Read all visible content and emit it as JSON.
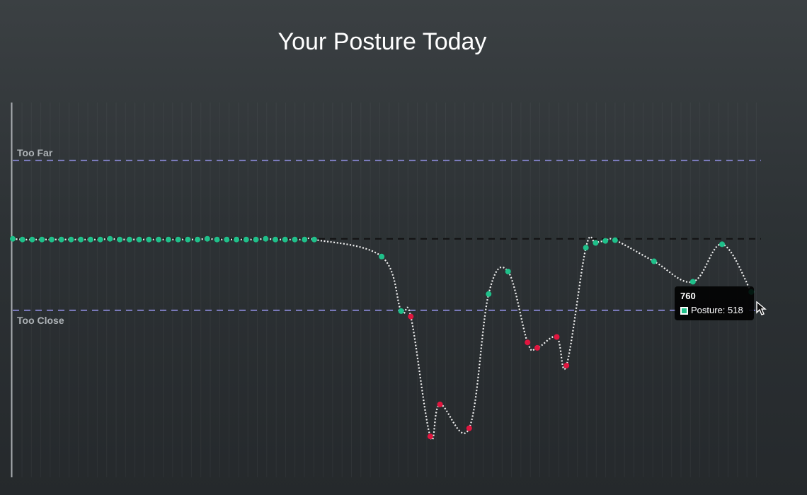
{
  "chart_data": {
    "type": "line",
    "title": "Your Posture Today",
    "xlabel": "",
    "ylabel": "",
    "grid": true,
    "xlim": [
      0,
      1000
    ],
    "ylim": [
      -350,
      200
    ],
    "reference_lines": [
      {
        "label": "Too Far",
        "value": 115,
        "color": "#7f7fc4",
        "style": "dashed"
      },
      {
        "label": "",
        "value": 0,
        "color": "#111111",
        "style": "dashed"
      },
      {
        "label": "Too Close",
        "value": 105,
        "color": "#7f7fc4",
        "style": "dashed",
        "display_value": -105
      }
    ],
    "series": [
      {
        "name": "Posture",
        "good_color": "#1fc08a",
        "bad_color": "#e0163f",
        "points": [
          {
            "x": 0,
            "y": 0
          },
          {
            "x": 13,
            "y": -1
          },
          {
            "x": 26,
            "y": -1
          },
          {
            "x": 39,
            "y": -1
          },
          {
            "x": 52,
            "y": -1
          },
          {
            "x": 65,
            "y": -1
          },
          {
            "x": 78,
            "y": -1
          },
          {
            "x": 91,
            "y": -1
          },
          {
            "x": 104,
            "y": -1
          },
          {
            "x": 117,
            "y": -1
          },
          {
            "x": 130,
            "y": 0
          },
          {
            "x": 143,
            "y": -1
          },
          {
            "x": 156,
            "y": -1
          },
          {
            "x": 169,
            "y": -1
          },
          {
            "x": 182,
            "y": -1
          },
          {
            "x": 195,
            "y": -1
          },
          {
            "x": 208,
            "y": -1
          },
          {
            "x": 221,
            "y": -1
          },
          {
            "x": 234,
            "y": -1
          },
          {
            "x": 247,
            "y": -1
          },
          {
            "x": 260,
            "y": 0
          },
          {
            "x": 273,
            "y": -1
          },
          {
            "x": 286,
            "y": -1
          },
          {
            "x": 299,
            "y": -1
          },
          {
            "x": 312,
            "y": -1
          },
          {
            "x": 325,
            "y": -1
          },
          {
            "x": 338,
            "y": 0
          },
          {
            "x": 351,
            "y": -1
          },
          {
            "x": 364,
            "y": -1
          },
          {
            "x": 377,
            "y": -1
          },
          {
            "x": 390,
            "y": -1
          },
          {
            "x": 403,
            "y": -1
          },
          {
            "x": 493,
            "y": -26
          },
          {
            "x": 519,
            "y": -106
          },
          {
            "x": 532,
            "y": -114
          },
          {
            "x": 558,
            "y": -290
          },
          {
            "x": 571,
            "y": -243
          },
          {
            "x": 610,
            "y": -278
          },
          {
            "x": 636,
            "y": -81
          },
          {
            "x": 662,
            "y": -48
          },
          {
            "x": 688,
            "y": -152
          },
          {
            "x": 701,
            "y": -160
          },
          {
            "x": 727,
            "y": -144
          },
          {
            "x": 740,
            "y": -186
          },
          {
            "x": 766,
            "y": -13
          },
          {
            "x": 779,
            "y": -6
          },
          {
            "x": 792,
            "y": -3
          },
          {
            "x": 805,
            "y": -2
          },
          {
            "x": 857,
            "y": -33
          },
          {
            "x": 909,
            "y": -63
          },
          {
            "x": 948,
            "y": -8
          },
          {
            "x": 987,
            "y": -78
          }
        ]
      }
    ],
    "tooltip": {
      "title": "760",
      "label": "Posture: 518"
    }
  }
}
